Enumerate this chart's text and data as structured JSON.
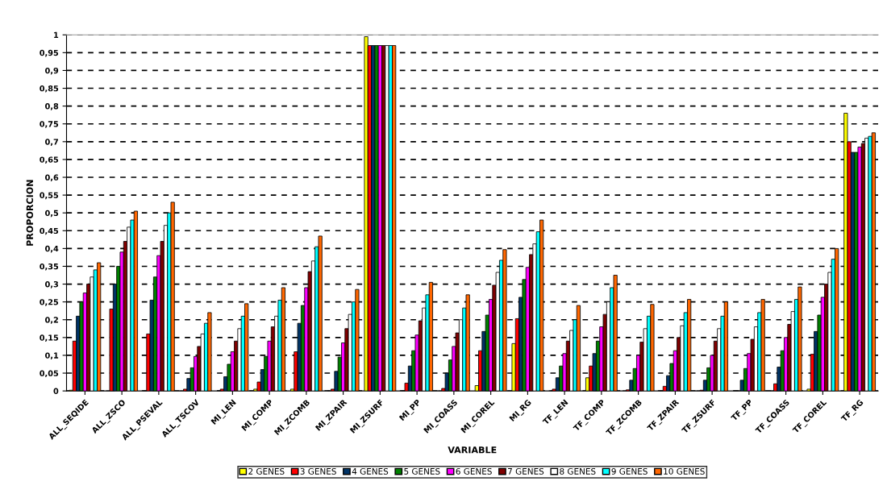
{
  "chart_data": {
    "type": "bar",
    "xlabel": "VARIABLE",
    "ylabel": "PROPORCION",
    "categories": [
      "ALL_SEQIDE",
      "ALL_ZSCO",
      "ALL_PSEVAL",
      "ALL_TSCOV",
      "MI_LEN",
      "MI_COMP",
      "MI_ZCOMB",
      "MI_ZPAIR",
      "MI_ZSURF",
      "MI_PP",
      "MI_COASS",
      "MI_COREL",
      "MI_RG",
      "TF_LEN",
      "TF_COMP",
      "TF_ZCOMB",
      "TF_ZPAIR",
      "TF_ZSURF",
      "TF_PP",
      "TF_COASS",
      "TF_COREL",
      "TF_RG"
    ],
    "series": [
      {
        "name": "2 GENES",
        "color": "#ffff00",
        "values": [
          0.002,
          0,
          0,
          0,
          0,
          0.005,
          0.005,
          0,
          0.995,
          0,
          0,
          0.015,
          0.133,
          0,
          0.037,
          0,
          0,
          0,
          0,
          0,
          0.005,
          0.78
        ]
      },
      {
        "name": "3 GENES",
        "color": "#ff0000",
        "values": [
          0.14,
          0.23,
          0.16,
          0.005,
          0.005,
          0.025,
          0.11,
          0.005,
          0.97,
          0.022,
          0.007,
          0.113,
          0.203,
          0.005,
          0.07,
          0.003,
          0.013,
          0.002,
          null,
          0.02,
          0.103,
          0.7
        ]
      },
      {
        "name": "4 GENES",
        "color": "#003366",
        "values": [
          0.21,
          0.3,
          0.255,
          0.035,
          0.04,
          0.06,
          0.19,
          0.055,
          0.97,
          0.07,
          0.05,
          0.167,
          0.263,
          0.037,
          0.105,
          0.03,
          0.043,
          0.03,
          0.03,
          0.067,
          0.167,
          0.67
        ]
      },
      {
        "name": "5 GENES",
        "color": "#008000",
        "values": [
          0.25,
          0.35,
          0.32,
          0.065,
          0.075,
          0.097,
          0.24,
          0.095,
          0.97,
          0.113,
          0.087,
          0.213,
          0.313,
          0.07,
          0.14,
          0.063,
          0.077,
          0.065,
          0.063,
          0.113,
          0.213,
          0.67
        ]
      },
      {
        "name": "6 GENES",
        "color": "#ff00ff",
        "values": [
          0.275,
          0.39,
          0.38,
          0.097,
          0.11,
          0.14,
          0.29,
          0.135,
          0.97,
          0.157,
          0.125,
          0.257,
          0.347,
          0.105,
          0.18,
          0.1,
          0.113,
          0.1,
          0.105,
          0.15,
          0.263,
          0.685
        ]
      },
      {
        "name": "7 GENES",
        "color": "#800000",
        "values": [
          0.3,
          0.42,
          0.42,
          0.125,
          0.14,
          0.18,
          0.335,
          0.175,
          0.97,
          0.197,
          0.163,
          0.297,
          0.383,
          0.14,
          0.215,
          0.137,
          0.15,
          0.14,
          0.145,
          0.187,
          0.3,
          0.695
        ]
      },
      {
        "name": "8 GENES",
        "color": "#ffffff",
        "values": [
          0.32,
          0.46,
          0.465,
          0.16,
          0.175,
          0.21,
          0.365,
          0.215,
          0.97,
          0.233,
          0.2,
          0.333,
          0.413,
          0.17,
          0.25,
          0.175,
          0.183,
          0.175,
          0.18,
          0.223,
          0.333,
          0.71
        ]
      },
      {
        "name": "9 GENES",
        "color": "#00ffff",
        "values": [
          0.34,
          0.48,
          0.5,
          0.19,
          0.21,
          0.255,
          0.405,
          0.25,
          0.97,
          0.27,
          0.233,
          0.367,
          0.447,
          0.2,
          0.29,
          0.21,
          0.22,
          0.21,
          0.22,
          0.257,
          0.37,
          0.715
        ]
      },
      {
        "name": "10 GENES",
        "color": "#ff6600",
        "values": [
          0.36,
          0.505,
          0.53,
          0.22,
          0.245,
          0.29,
          0.435,
          0.285,
          0.97,
          0.305,
          0.27,
          0.397,
          0.48,
          0.24,
          0.325,
          0.243,
          0.257,
          0.25,
          0.257,
          0.292,
          0.4,
          0.725
        ]
      }
    ],
    "ylim": [
      0,
      1
    ],
    "yticks": [
      0,
      {
        "value": 0.05,
        "label": "0,05"
      },
      {
        "value": 0.1,
        "label": "0,1"
      },
      {
        "value": 0.15,
        "label": "0,15"
      },
      {
        "value": 0.2,
        "label": "0,2"
      },
      {
        "value": 0.25,
        "label": "0,25"
      },
      {
        "value": 0.3,
        "label": "0,3"
      },
      {
        "value": 0.35,
        "label": "0,35"
      },
      {
        "value": 0.4,
        "label": "0,4"
      },
      {
        "value": 0.45,
        "label": "0,45"
      },
      {
        "value": 0.5,
        "label": "0,5"
      },
      {
        "value": 0.55,
        "label": "0,55"
      },
      {
        "value": 0.6,
        "label": "0,6"
      },
      {
        "value": 0.65,
        "label": "0,65"
      },
      {
        "value": 0.7,
        "label": "0,7"
      },
      {
        "value": 0.75,
        "label": "0,75"
      },
      {
        "value": 0.8,
        "label": "0,8"
      },
      {
        "value": 0.85,
        "label": "0,85"
      },
      {
        "value": 0.9,
        "label": "0,9"
      },
      {
        "value": 0.95,
        "label": "0,95"
      },
      1
    ],
    "grid": "y",
    "legend": "bottom"
  }
}
